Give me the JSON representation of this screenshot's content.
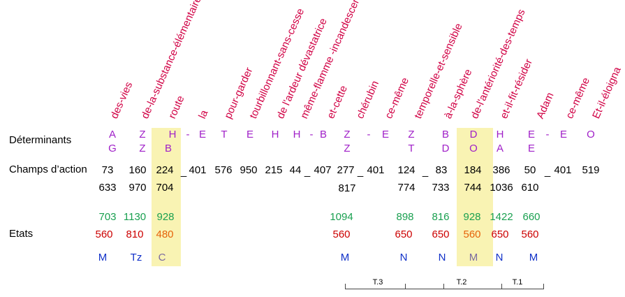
{
  "words": [
    "des-vies",
    "de-la-substance-élémentaire",
    "route",
    "la",
    "pour-garder",
    "tourbillonnant-sans-cesse",
    "de l'ardeur dévastatrice",
    "même-flamme -incandescente",
    "et-cette",
    "chérubin",
    "ce-même",
    "temporelle-et-sensible",
    "à-la-sphère",
    "de-l'antériorité-des-temps",
    "et-il-fit-résider",
    "Adam",
    "ce-même",
    "Et-il-éloigna"
  ],
  "row_labels": {
    "determinants": "Déterminants",
    "champs": "Champs d’action",
    "etats": "Etats"
  },
  "det_top": [
    "A",
    "Z",
    "H",
    "-",
    "E",
    "T",
    "E",
    "H",
    "H",
    "-",
    "B",
    "Z",
    "-",
    "E",
    "Z",
    "B",
    "D",
    "H",
    "E",
    "-",
    "E",
    "O"
  ],
  "det_bottom": [
    "G",
    "Z",
    "B",
    "Z",
    "T",
    "D",
    "O",
    "A",
    "E"
  ],
  "champs_top": [
    "73",
    "160",
    "224",
    "_",
    "401",
    "576",
    "950",
    "215",
    "44",
    "_",
    "407",
    "277",
    "_",
    "401",
    "124",
    "_",
    "83",
    "184",
    "386",
    "50",
    "_",
    "401",
    "519"
  ],
  "champs_bottom": [
    "633",
    "970",
    "704",
    "817",
    "774",
    "733",
    "744",
    "1036",
    "610"
  ],
  "etats_green": [
    "703",
    "1130",
    "928",
    "1094",
    "898",
    "816",
    "928",
    "1422",
    "660"
  ],
  "etats_red": [
    "560",
    "810",
    "480",
    "560",
    "650",
    "650",
    "560",
    "650",
    "560"
  ],
  "etats_blue": [
    "M",
    "Tz",
    "C",
    "M",
    "N",
    "N",
    "M",
    "N",
    "M"
  ],
  "brackets": [
    "T.3",
    "T.2",
    "T.1"
  ]
}
